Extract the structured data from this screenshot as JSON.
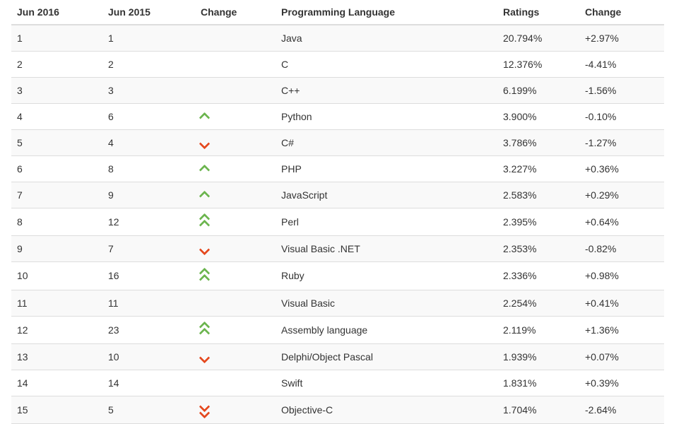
{
  "colors": {
    "arrow_up": "#6cb54f",
    "arrow_down": "#e5491f",
    "stripe": "#f9f9f9",
    "border": "#dddddd",
    "text": "#333333"
  },
  "icons": {
    "up": "single green chevron-up",
    "down": "single red chevron-down",
    "up2": "double green chevron-up",
    "down2": "double red chevron-down",
    "": "no change indicator"
  },
  "table": {
    "headers": {
      "rank_2016": "Jun 2016",
      "rank_2015": "Jun 2015",
      "change": "Change",
      "language": "Programming Language",
      "ratings": "Ratings",
      "change_pct": "Change"
    },
    "rows": [
      {
        "rank_2016": "1",
        "rank_2015": "1",
        "change_icon": "",
        "language": "Java",
        "ratings": "20.794%",
        "change_pct": "+2.97%"
      },
      {
        "rank_2016": "2",
        "rank_2015": "2",
        "change_icon": "",
        "language": "C",
        "ratings": "12.376%",
        "change_pct": "-4.41%"
      },
      {
        "rank_2016": "3",
        "rank_2015": "3",
        "change_icon": "",
        "language": "C++",
        "ratings": "6.199%",
        "change_pct": "-1.56%"
      },
      {
        "rank_2016": "4",
        "rank_2015": "6",
        "change_icon": "up",
        "language": "Python",
        "ratings": "3.900%",
        "change_pct": "-0.10%"
      },
      {
        "rank_2016": "5",
        "rank_2015": "4",
        "change_icon": "down",
        "language": "C#",
        "ratings": "3.786%",
        "change_pct": "-1.27%"
      },
      {
        "rank_2016": "6",
        "rank_2015": "8",
        "change_icon": "up",
        "language": "PHP",
        "ratings": "3.227%",
        "change_pct": "+0.36%"
      },
      {
        "rank_2016": "7",
        "rank_2015": "9",
        "change_icon": "up",
        "language": "JavaScript",
        "ratings": "2.583%",
        "change_pct": "+0.29%"
      },
      {
        "rank_2016": "8",
        "rank_2015": "12",
        "change_icon": "up2",
        "language": "Perl",
        "ratings": "2.395%",
        "change_pct": "+0.64%"
      },
      {
        "rank_2016": "9",
        "rank_2015": "7",
        "change_icon": "down",
        "language": "Visual Basic .NET",
        "ratings": "2.353%",
        "change_pct": "-0.82%"
      },
      {
        "rank_2016": "10",
        "rank_2015": "16",
        "change_icon": "up2",
        "language": "Ruby",
        "ratings": "2.336%",
        "change_pct": "+0.98%"
      },
      {
        "rank_2016": "11",
        "rank_2015": "11",
        "change_icon": "",
        "language": "Visual Basic",
        "ratings": "2.254%",
        "change_pct": "+0.41%"
      },
      {
        "rank_2016": "12",
        "rank_2015": "23",
        "change_icon": "up2",
        "language": "Assembly language",
        "ratings": "2.119%",
        "change_pct": "+1.36%"
      },
      {
        "rank_2016": "13",
        "rank_2015": "10",
        "change_icon": "down",
        "language": "Delphi/Object Pascal",
        "ratings": "1.939%",
        "change_pct": "+0.07%"
      },
      {
        "rank_2016": "14",
        "rank_2015": "14",
        "change_icon": "",
        "language": "Swift",
        "ratings": "1.831%",
        "change_pct": "+0.39%"
      },
      {
        "rank_2016": "15",
        "rank_2015": "5",
        "change_icon": "down2",
        "language": "Objective-C",
        "ratings": "1.704%",
        "change_pct": "-2.64%"
      }
    ]
  }
}
